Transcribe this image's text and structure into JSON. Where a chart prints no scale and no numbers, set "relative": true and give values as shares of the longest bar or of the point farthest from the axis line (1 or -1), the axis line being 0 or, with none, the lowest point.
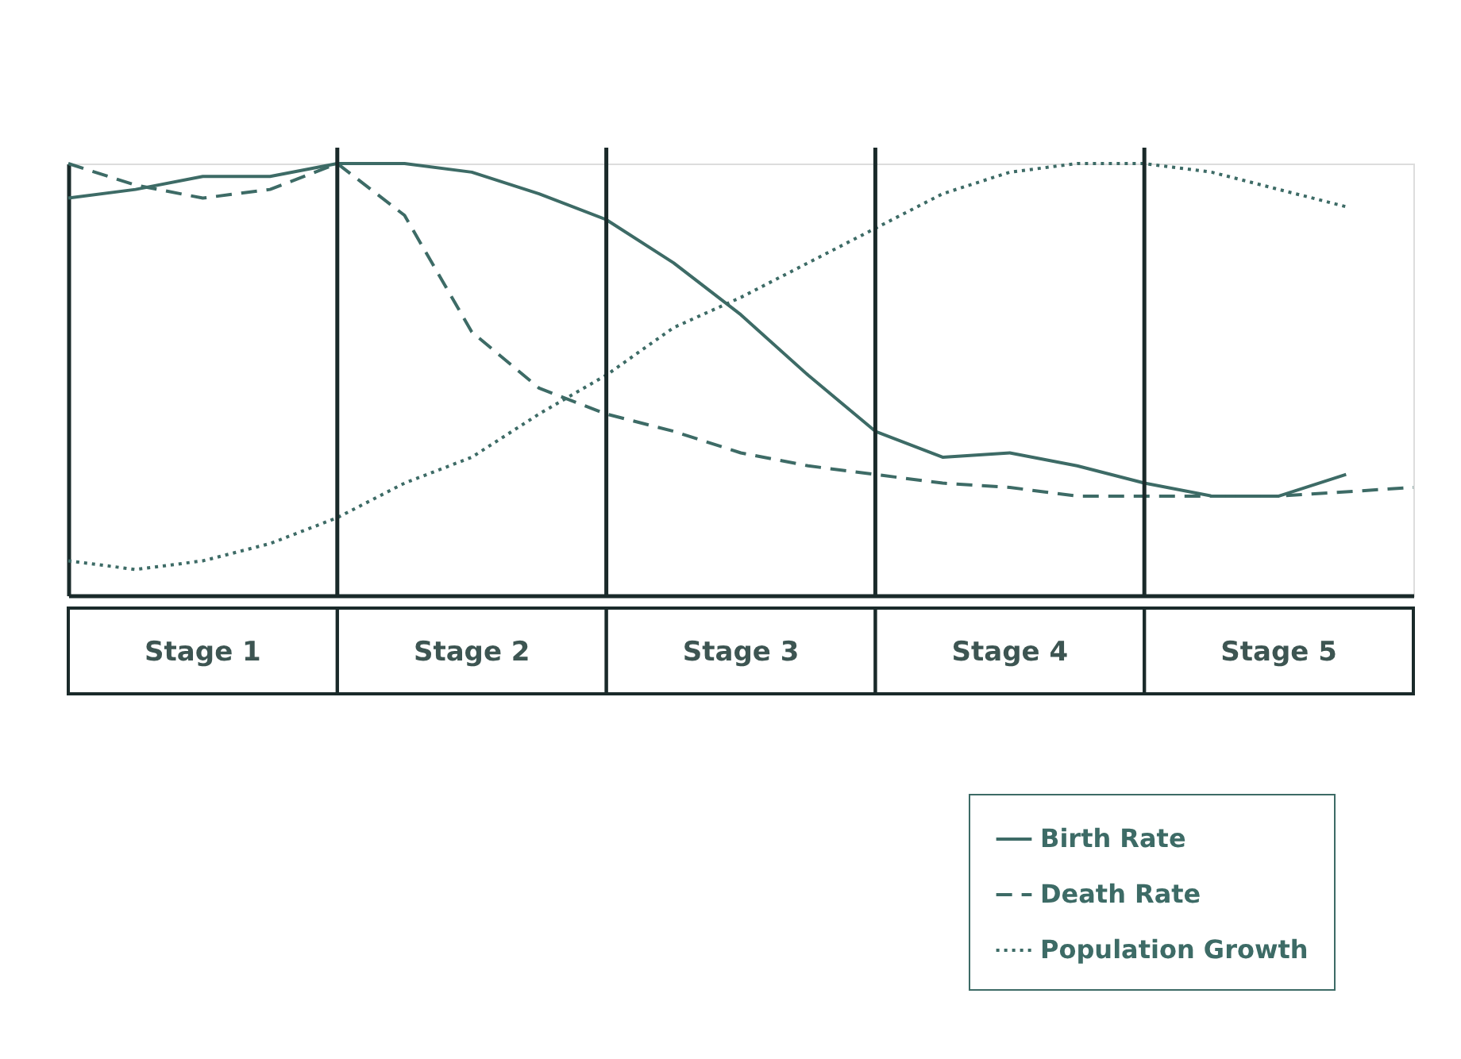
{
  "chart_data": {
    "type": "line",
    "relative": true,
    "tick_labels": false,
    "grid": "x",
    "legend": "bottom right",
    "categories": [
      null,
      null,
      null,
      null,
      null,
      null,
      null,
      null,
      null,
      null,
      null,
      null,
      null,
      null,
      null,
      null,
      null,
      null,
      null,
      null,
      null
    ],
    "series": [
      {
        "name": "Birth Rate",
        "color": "#3d6b66",
        "line_style": "solid",
        "values": [
          0.92,
          0.94,
          0.97,
          0.97,
          1.0,
          1.0,
          0.98,
          0.93,
          0.87,
          0.77,
          0.65,
          0.51,
          0.38,
          0.32,
          0.33,
          0.3,
          0.26,
          0.23,
          0.23,
          0.28,
          null
        ]
      },
      {
        "name": "Death Rate",
        "color": "#3d6b66",
        "line_style": "dashed",
        "values": [
          1.0,
          0.95,
          0.92,
          0.94,
          1.0,
          0.88,
          0.61,
          0.48,
          0.42,
          0.38,
          0.33,
          0.3,
          0.28,
          0.26,
          0.25,
          0.23,
          0.23,
          0.23,
          0.23,
          0.24,
          0.25
        ]
      },
      {
        "name": "Population Growth",
        "color": "#3d6b66",
        "line_style": "dotted",
        "values": [
          0.08,
          0.06,
          0.08,
          0.12,
          0.18,
          0.26,
          0.32,
          0.42,
          0.51,
          0.62,
          0.69,
          0.77,
          0.85,
          0.93,
          0.98,
          1.0,
          1.0,
          0.98,
          0.94,
          0.9,
          null
        ]
      }
    ],
    "annotations": [
      "Stage 1",
      "Stage 2",
      "Stage 3",
      "Stage 4",
      "Stage 5"
    ]
  }
}
